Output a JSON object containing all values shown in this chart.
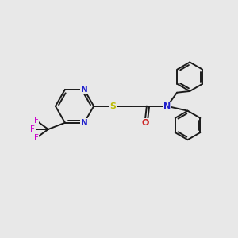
{
  "background_color": "#e8e8e8",
  "bond_color": "#1a1a1a",
  "N_color": "#2020cc",
  "O_color": "#cc2020",
  "S_color": "#bbbb00",
  "F_color": "#cc00cc",
  "line_width": 1.4,
  "figsize": [
    3.0,
    3.0
  ],
  "dpi": 100,
  "xlim": [
    0,
    10
  ],
  "ylim": [
    0,
    10
  ]
}
